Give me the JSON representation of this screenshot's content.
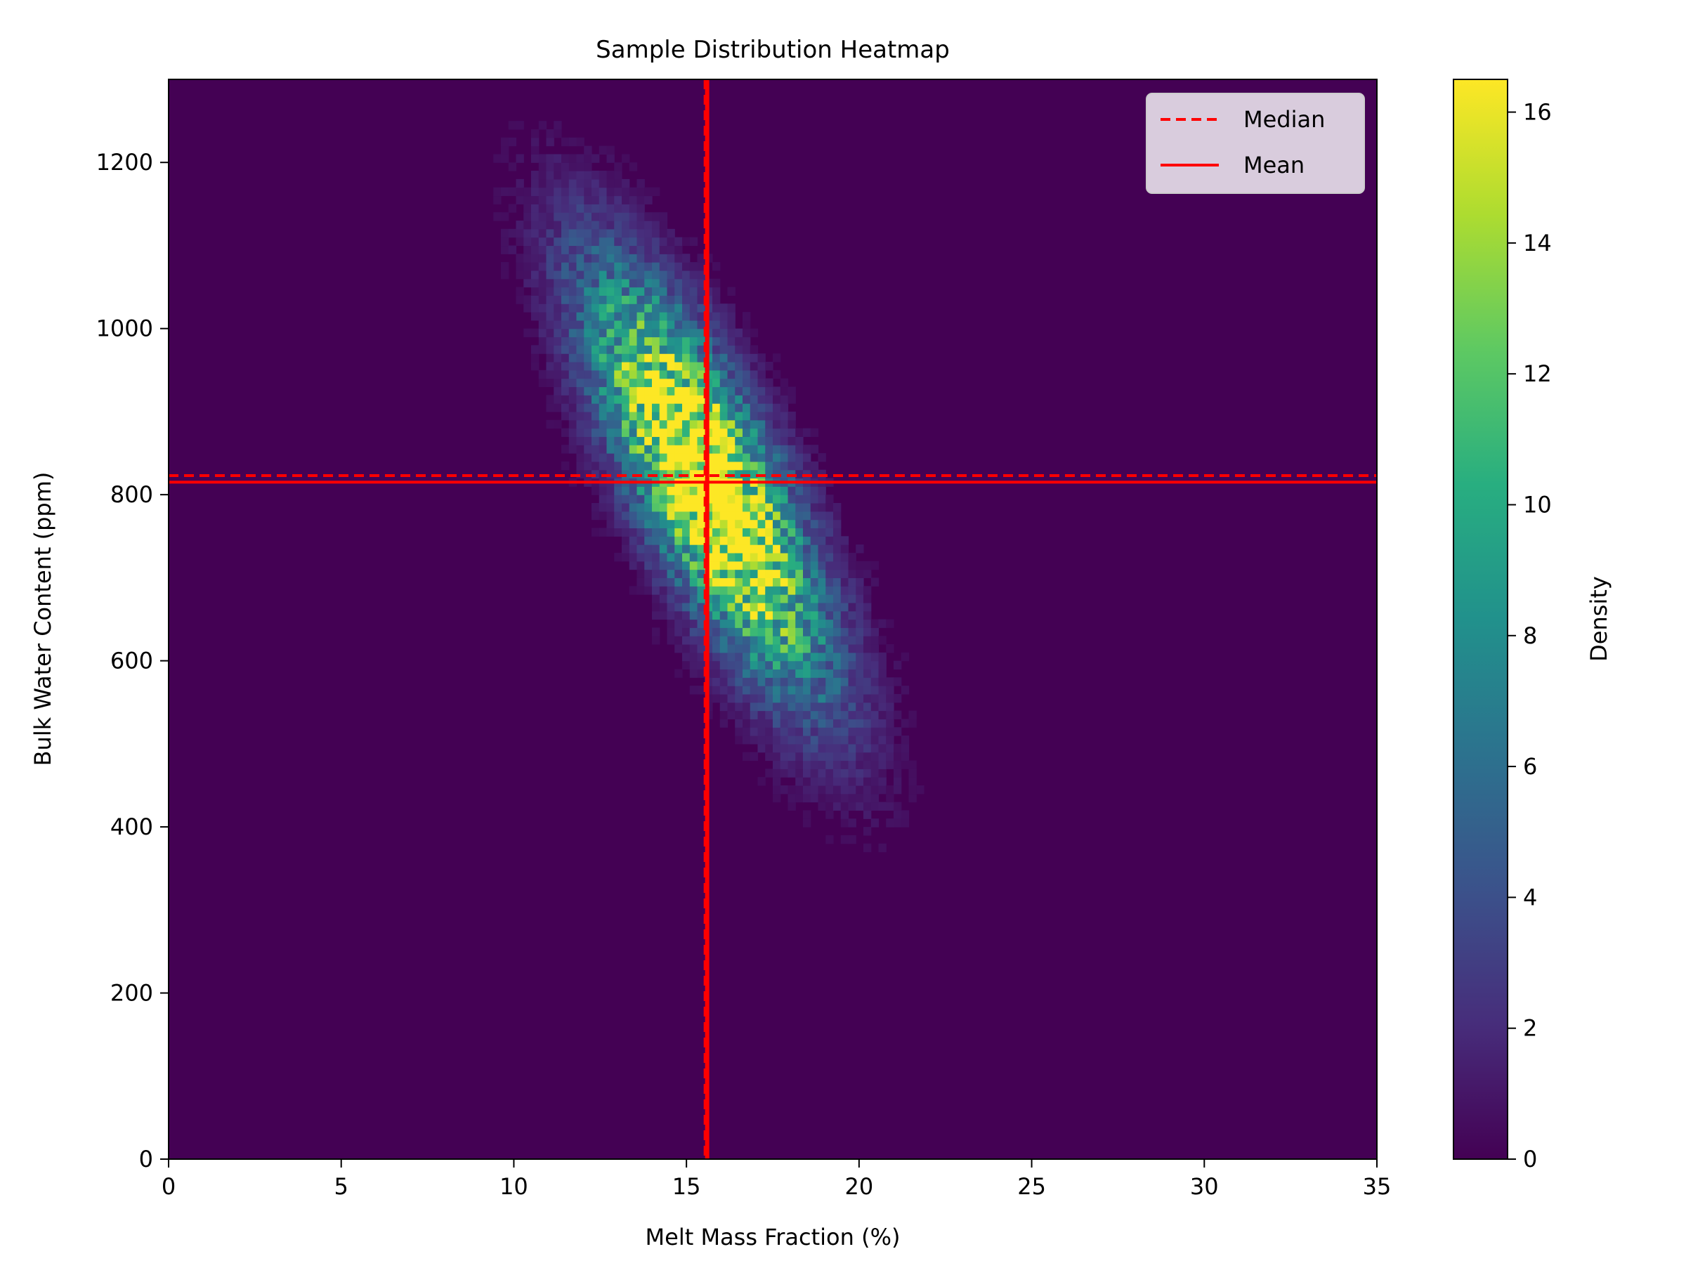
{
  "chart_data": {
    "type": "heatmap",
    "title": "Sample Distribution Heatmap",
    "xlabel": "Melt Mass Fraction (%)",
    "ylabel": "Bulk Water Content (ppm)",
    "xlim": [
      0,
      35
    ],
    "ylim": [
      0,
      1300
    ],
    "xticks": [
      0,
      5,
      10,
      15,
      20,
      25,
      30,
      35
    ],
    "yticks": [
      0,
      200,
      400,
      600,
      800,
      1000,
      1200
    ],
    "colormap": "viridis",
    "colorbar": {
      "label": "Density",
      "range": [
        0,
        16.5
      ],
      "ticks": [
        0,
        2,
        4,
        6,
        8,
        10,
        12,
        14,
        16
      ]
    },
    "distribution": {
      "mean_x": 15.6,
      "mean_y": 815,
      "sd_x": 2.2,
      "sd_y": 160,
      "correlation": -0.78,
      "peak_density": 16.5
    },
    "reference_lines": [
      {
        "name": "Median",
        "style": "dashed",
        "color": "#ff0000",
        "x": 15.55,
        "y": 823
      },
      {
        "name": "Mean",
        "style": "solid",
        "color": "#ff0000",
        "x": 15.6,
        "y": 815
      }
    ],
    "legend": {
      "position": "upper right",
      "entries": [
        "Median",
        "Mean"
      ]
    }
  }
}
